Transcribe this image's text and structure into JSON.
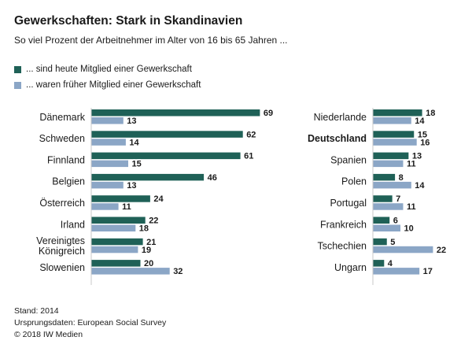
{
  "colors": {
    "current": "#1f6157",
    "former": "#8ba6c6",
    "axis": "#c8c8c8",
    "text": "#1a1a1a"
  },
  "chart_data": {
    "type": "bar",
    "title": "Gewerkschaften: Stark in Skandinavien",
    "subtitle": "So viel Prozent der Arbeitnehmer im Alter von 16 bis 65 Jahren ...",
    "series": [
      {
        "name": "... sind heute Mitglied einer Gewerkschaft",
        "key": "current"
      },
      {
        "name": "... waren früher Mitglied einer Gewerkschaft",
        "key": "former"
      }
    ],
    "panels": [
      {
        "categories": [
          {
            "label": "Dänemark",
            "lines": [
              "Dänemark"
            ],
            "bold": false,
            "current": 69,
            "former": 13
          },
          {
            "label": "Schweden",
            "lines": [
              "Schweden"
            ],
            "bold": false,
            "current": 62,
            "former": 14
          },
          {
            "label": "Finnland",
            "lines": [
              "Finnland"
            ],
            "bold": false,
            "current": 61,
            "former": 15
          },
          {
            "label": "Belgien",
            "lines": [
              "Belgien"
            ],
            "bold": false,
            "current": 46,
            "former": 13
          },
          {
            "label": "Österreich",
            "lines": [
              "Österreich"
            ],
            "bold": false,
            "current": 24,
            "former": 11
          },
          {
            "label": "Irland",
            "lines": [
              "Irland"
            ],
            "bold": false,
            "current": 22,
            "former": 18
          },
          {
            "label": "Vereinigtes Königreich",
            "lines": [
              "Vereinigtes",
              "Königreich"
            ],
            "bold": false,
            "current": 21,
            "former": 19
          },
          {
            "label": "Slowenien",
            "lines": [
              "Slowenien"
            ],
            "bold": false,
            "current": 20,
            "former": 32
          }
        ]
      },
      {
        "categories": [
          {
            "label": "Niederlande",
            "lines": [
              "Niederlande"
            ],
            "bold": false,
            "current": 18,
            "former": 14
          },
          {
            "label": "Deutschland",
            "lines": [
              "Deutschland"
            ],
            "bold": true,
            "current": 15,
            "former": 16
          },
          {
            "label": "Spanien",
            "lines": [
              "Spanien"
            ],
            "bold": false,
            "current": 13,
            "former": 11
          },
          {
            "label": "Polen",
            "lines": [
              "Polen"
            ],
            "bold": false,
            "current": 8,
            "former": 14
          },
          {
            "label": "Portugal",
            "lines": [
              "Portugal"
            ],
            "bold": false,
            "current": 7,
            "former": 11
          },
          {
            "label": "Frankreich",
            "lines": [
              "Frankreich"
            ],
            "bold": false,
            "current": 6,
            "former": 10
          },
          {
            "label": "Tschechien",
            "lines": [
              "Tschechien"
            ],
            "bold": false,
            "current": 5,
            "former": 22
          },
          {
            "label": "Ungarn",
            "lines": [
              "Ungarn"
            ],
            "bold": false,
            "current": 4,
            "former": 17
          }
        ]
      }
    ],
    "unit": "%"
  },
  "footer": {
    "stand": "Stand: 2014",
    "source": "Ursprungsdaten: European Social Survey",
    "copyright": "© 2018 IW Medien"
  }
}
